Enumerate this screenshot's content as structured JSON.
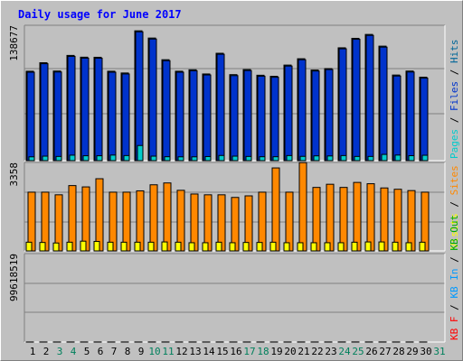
{
  "title": "Daily usage for June 2017",
  "colors": {
    "background": "#c0c0c0",
    "title": "#0000ff",
    "hits": "#006699",
    "files": "#0033cc",
    "pages": "#00cccc",
    "visits": "#ffff00",
    "sites": "#ff8800",
    "kbin": "#0099ff",
    "kbout": "#00aa00",
    "kbf": "#ff0000",
    "weekday": "#000000",
    "weekend": "#00805c"
  },
  "chart_data": [
    {
      "type": "bar",
      "name": "hits-files-pages",
      "categories": [
        "1",
        "2",
        "3",
        "4",
        "5",
        "6",
        "7",
        "8",
        "9",
        "10",
        "11",
        "12",
        "13",
        "14",
        "15",
        "16",
        "17",
        "18",
        "19",
        "20",
        "21",
        "22",
        "23",
        "24",
        "25",
        "26",
        "27",
        "28",
        "29",
        "30",
        "31"
      ],
      "ymax_label": "138677",
      "ylim": [
        0,
        138677
      ],
      "legend": [
        "Pages",
        "/",
        "Files",
        "/",
        "Hits"
      ],
      "series": [
        {
          "name": "Hits",
          "values": [
            91600,
            100300,
            91800,
            107800,
            106000,
            105900,
            91600,
            89800,
            133000,
            125600,
            103400,
            91600,
            93100,
            88800,
            110000,
            88100,
            93300,
            87500,
            86400,
            97900,
            104400,
            92800,
            94300,
            115600,
            125300,
            129300,
            117300,
            87700,
            91800,
            85500,
            0
          ]
        },
        {
          "name": "Files",
          "values": [
            90600,
            99300,
            90800,
            106800,
            105000,
            104900,
            90600,
            88800,
            132000,
            124600,
            102400,
            90600,
            92100,
            87800,
            109000,
            87100,
            92300,
            86500,
            85400,
            96900,
            103400,
            91800,
            93300,
            114600,
            124300,
            128300,
            116300,
            86700,
            90800,
            84500,
            0
          ]
        },
        {
          "name": "Pages",
          "values": [
            3900,
            4600,
            4300,
            5600,
            5000,
            5000,
            5700,
            5200,
            15500,
            4600,
            4000,
            3900,
            3900,
            4200,
            5300,
            4600,
            4300,
            4000,
            4000,
            5200,
            4400,
            4900,
            4800,
            5200,
            4300,
            4300,
            6400,
            5700,
            5100,
            5500,
            0
          ]
        }
      ]
    },
    {
      "type": "bar",
      "name": "visits-sites",
      "categories": [
        "1",
        "2",
        "3",
        "4",
        "5",
        "6",
        "7",
        "8",
        "9",
        "10",
        "11",
        "12",
        "13",
        "14",
        "15",
        "16",
        "17",
        "18",
        "19",
        "20",
        "21",
        "22",
        "23",
        "24",
        "25",
        "26",
        "27",
        "28",
        "29",
        "30",
        "31"
      ],
      "ymax_label": "3358",
      "ylim": [
        0,
        3358
      ],
      "legend": [
        "Visits",
        "/",
        "Sites"
      ],
      "series": [
        {
          "name": "Visits",
          "values": [
            330,
            320,
            300,
            330,
            370,
            360,
            330,
            330,
            330,
            330,
            340,
            330,
            310,
            310,
            330,
            310,
            320,
            320,
            330,
            310,
            310,
            310,
            310,
            310,
            330,
            340,
            340,
            330,
            310,
            330,
            0
          ]
        },
        {
          "name": "Sites",
          "values": [
            2230,
            2230,
            2130,
            2480,
            2430,
            2740,
            2230,
            2230,
            2280,
            2510,
            2580,
            2300,
            2160,
            2130,
            2130,
            2030,
            2090,
            2230,
            3150,
            2230,
            3350,
            2410,
            2530,
            2410,
            2600,
            2550,
            2390,
            2340,
            2290,
            2230,
            0
          ]
        }
      ]
    },
    {
      "type": "bar",
      "name": "kbytes",
      "categories": [
        "1",
        "2",
        "3",
        "4",
        "5",
        "6",
        "7",
        "8",
        "9",
        "10",
        "11",
        "12",
        "13",
        "14",
        "15",
        "16",
        "17",
        "18",
        "19",
        "20",
        "21",
        "22",
        "23",
        "24",
        "25",
        "26",
        "27",
        "28",
        "29",
        "30",
        "31"
      ],
      "ymax_label": "99618519",
      "ylim": [
        0,
        99618519
      ],
      "legend": [
        "KB F",
        "/",
        "KB In",
        "/",
        "KB Out"
      ],
      "series": [
        {
          "name": "KB F",
          "values": [
            46800,
            53900,
            39000,
            60500,
            57900,
            58500,
            45700,
            47900,
            53900,
            85100,
            71100,
            55900,
            54600,
            42900,
            55900,
            45500,
            50600,
            49400,
            47500,
            46800,
            74800,
            54600,
            60500,
            88400,
            96200,
            82500,
            87700,
            51900,
            51900,
            39000,
            0
          ]
        },
        {
          "name": "KB In",
          "values": [
            0,
            0,
            0,
            0,
            0,
            0,
            0,
            0,
            0,
            0,
            0,
            0,
            0,
            0,
            0,
            0,
            0,
            0,
            0,
            0,
            0,
            0,
            0,
            0,
            0,
            0,
            0,
            0,
            0,
            0,
            0
          ]
        },
        {
          "name": "KB Out",
          "values": [
            0,
            0,
            0,
            0,
            0,
            0,
            0,
            0,
            0,
            0,
            0,
            0,
            0,
            0,
            0,
            0,
            0,
            0,
            0,
            0,
            0,
            0,
            0,
            0,
            0,
            0,
            0,
            0,
            0,
            0,
            0
          ]
        }
      ]
    }
  ],
  "x_axis": {
    "labels": [
      "1",
      "2",
      "3",
      "4",
      "5",
      "6",
      "7",
      "8",
      "9",
      "10",
      "11",
      "12",
      "13",
      "14",
      "15",
      "16",
      "17",
      "18",
      "19",
      "20",
      "21",
      "22",
      "23",
      "24",
      "25",
      "26",
      "27",
      "28",
      "29",
      "30",
      "31"
    ],
    "weekend_days": [
      3,
      4,
      10,
      11,
      17,
      18,
      24,
      25,
      31
    ]
  }
}
